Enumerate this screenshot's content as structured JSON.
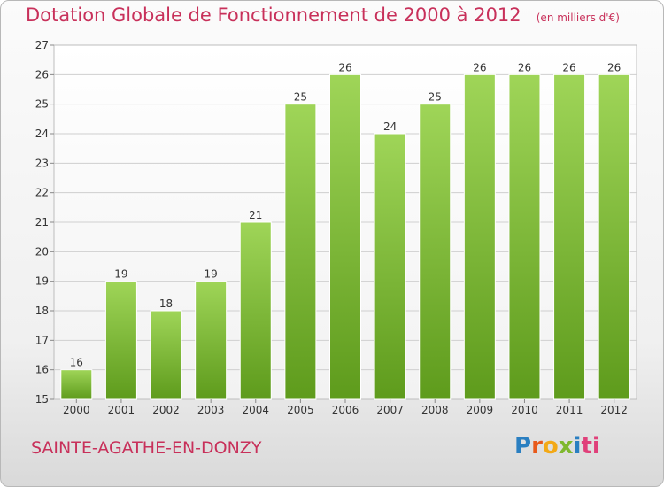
{
  "header": {
    "title": "Dotation Globale de Fonctionnement de 2000 à 2012",
    "unit_note": "(en milliers d'€)"
  },
  "footer": {
    "commune": "SAINTE-AGATHE-EN-DONZY",
    "logo_text": "Proxiti"
  },
  "colors": {
    "bar": "#7fbf35",
    "bar_light": "#9fd558",
    "bar_dark": "#5e9b1c",
    "title": "#c8305a",
    "grid": "#cfcfcf"
  },
  "chart_data": {
    "type": "bar",
    "title": "Dotation Globale de Fonctionnement de 2000 à 2012",
    "xlabel": "",
    "ylabel": "",
    "categories": [
      "2000",
      "2001",
      "2002",
      "2003",
      "2004",
      "2005",
      "2006",
      "2007",
      "2008",
      "2009",
      "2010",
      "2011",
      "2012"
    ],
    "values": [
      16,
      19,
      18,
      19,
      21,
      25,
      26,
      24,
      25,
      26,
      26,
      26,
      26
    ],
    "ylim": [
      15,
      27
    ],
    "yticks": [
      15,
      16,
      17,
      18,
      19,
      20,
      21,
      22,
      23,
      24,
      25,
      26,
      27
    ],
    "grid": true,
    "legend": "none"
  }
}
